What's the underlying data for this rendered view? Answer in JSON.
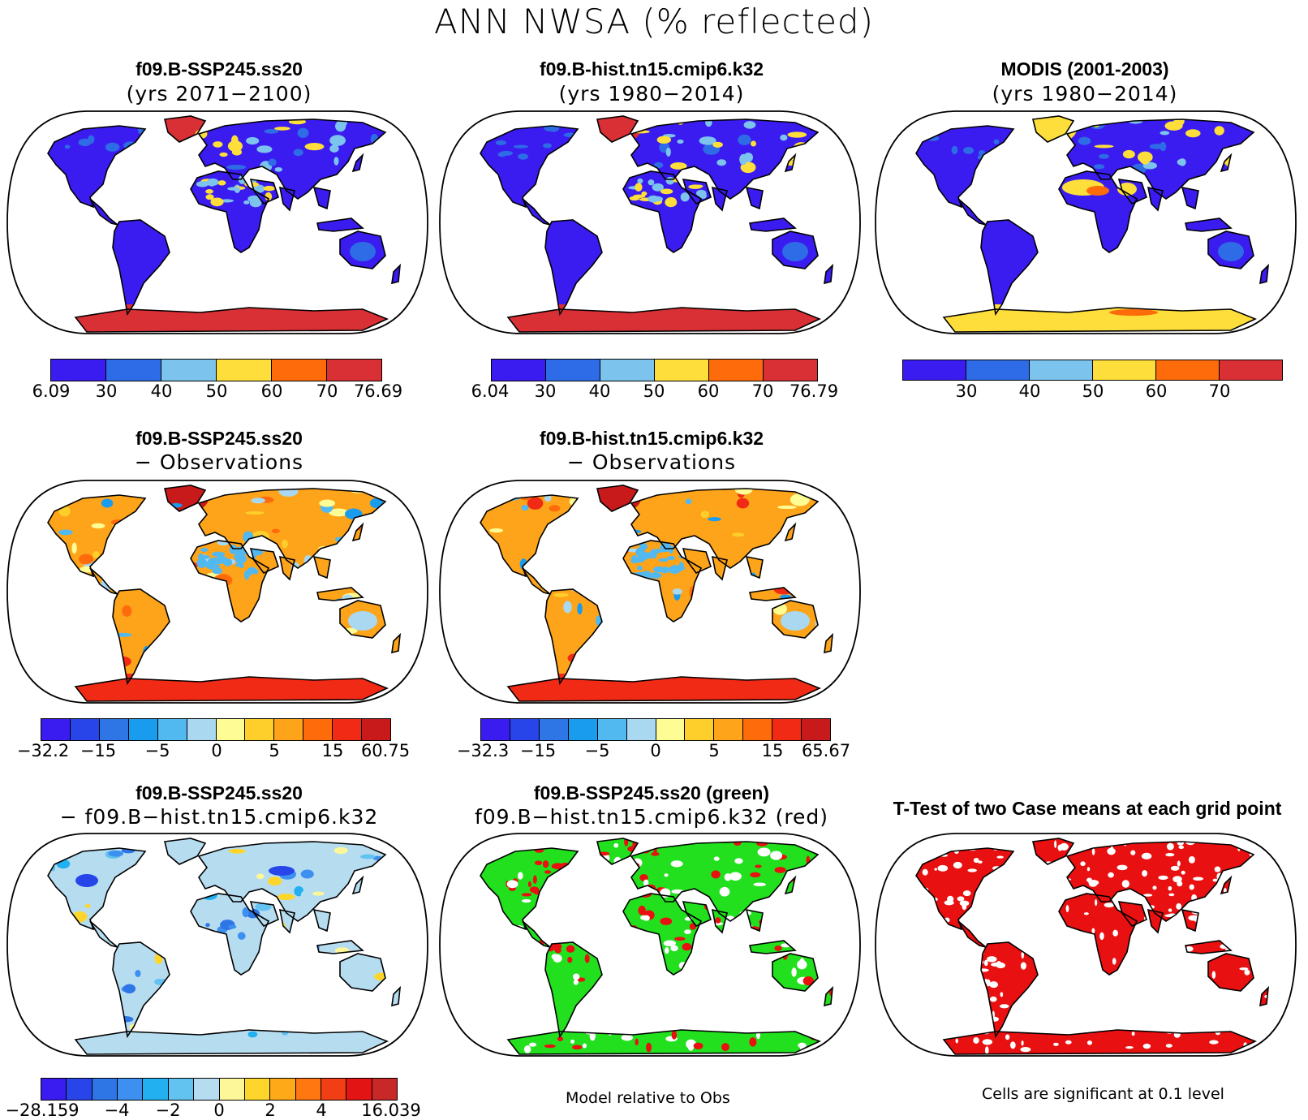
{
  "title": "ANN NWSA (% reflected)",
  "colors": {
    "abs_scale": [
      "#3a1cf0",
      "#2e6be6",
      "#7cc3ee",
      "#fdde3a",
      "#fe6b0b",
      "#d93035"
    ],
    "diff_scale": [
      "#3a1cf0",
      "#2745e8",
      "#2e75e6",
      "#1a9cee",
      "#52b8f0",
      "#a9d8f0",
      "#fefc94",
      "#fecf2a",
      "#fea41a",
      "#fe6b0b",
      "#f12a16",
      "#c81a1a"
    ],
    "case_scale": [
      "#3a1cf0",
      "#2745e8",
      "#2e75e6",
      "#3d8ff0",
      "#22b0f0",
      "#62c2f0",
      "#b6dcf0",
      "#fdf79a",
      "#fed52a",
      "#feaa18",
      "#fe7710",
      "#f23e14",
      "#e31414",
      "#c82828"
    ],
    "sig_model1": "#22e01e",
    "sig_model2": "#e81010",
    "sig_ttest": "#e81010",
    "land_base": "#3a1cf0",
    "coast": "#000000"
  },
  "panels": [
    {
      "title": "f09.B-SSP245.ss20",
      "subtitle": "(yrs 2071−2100)",
      "colorbar": {
        "labels": [
          "6.09",
          "30",
          "40",
          "50",
          "60",
          "70",
          "76.69"
        ]
      }
    },
    {
      "title": "f09.B-hist.tn15.cmip6.k32",
      "subtitle": "(yrs 1980−2014)",
      "colorbar": {
        "labels": [
          "6.04",
          "30",
          "40",
          "50",
          "60",
          "70",
          "76.79"
        ]
      }
    },
    {
      "title": "MODIS (2001-2003)",
      "subtitle": "(yrs 1980−2014)",
      "colorbar": {
        "labels": [
          "30",
          "40",
          "50",
          "60",
          "70"
        ]
      }
    },
    {
      "title": "f09.B-SSP245.ss20",
      "subtitle": "− Observations",
      "colorbar": {
        "labels": [
          "−32.2",
          "−15",
          "−5",
          "0",
          "5",
          "15",
          "60.75"
        ]
      }
    },
    {
      "title": "f09.B-hist.tn15.cmip6.k32",
      "subtitle": "− Observations",
      "colorbar": {
        "labels": [
          "−32.3",
          "−15",
          "−5",
          "0",
          "5",
          "15",
          "65.67"
        ]
      }
    },
    {
      "title": "f09.B-SSP245.ss20",
      "subtitle": "− f09.B−hist.tn15.cmip6.k32",
      "colorbar": {
        "labels": [
          "−28.159",
          "−4",
          "−2",
          "0",
          "2",
          "4",
          "16.039"
        ]
      }
    },
    {
      "title": "f09.B-SSP245.ss20 (green)",
      "subtitle": "f09.B−hist.tn15.cmip6.k32 (red)"
    },
    {
      "title": "T-Test of two Case means at each grid point"
    }
  ],
  "footnotes": {
    "middle": "Model relative to Obs",
    "right": "Cells are significant at 0.1 level"
  }
}
